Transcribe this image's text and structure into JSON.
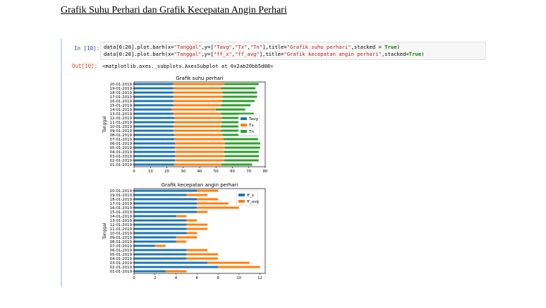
{
  "document": {
    "heading": "Grafik Suhu Perhari dan Grafik Kecepatan Angin Perhari"
  },
  "notebook": {
    "input_prompt": "In [10]:",
    "output_prompt": "Out[10]:",
    "code_line_1": {
      "prefix": "data[0:20].plot.barh(x=",
      "x": "\"Tanggal\"",
      "mid": ",y=[",
      "y1": "\"Tavg\"",
      "c1": ",",
      "y2": "\"Tx\"",
      "c2": ",",
      "y3": "\"Tn\"",
      "mid2": "],title=",
      "title": "\"Grafik suhu perhari\"",
      "mid3": ",stacked = ",
      "kw": "True",
      "end": ")"
    },
    "code_line_2": {
      "prefix": "data[0:20].plot.barh(x=",
      "x": "\"Tanggal\"",
      "mid": ",y=[",
      "y1": "\"ff_x\"",
      "c1": ",",
      "y2": "\"ff_avg\"",
      "mid2": "],title=",
      "title": "\"Grafik kecepatan angin perhari\"",
      "mid3": ",stacked=",
      "kw": "True",
      "end": ")"
    },
    "output_text": "<matplotlib.axes._subplots.AxesSubplot at 0x2ab20bb5d08>"
  },
  "colors": {
    "blue": "#1f77b4",
    "orange": "#ff7f0e",
    "green": "#2ca02c"
  },
  "chart_data": [
    {
      "type": "bar",
      "orientation": "horizontal",
      "stacked": true,
      "title": "Grafik suhu perhari",
      "ylabel": "Tanggal",
      "xlabel": "",
      "xlim": [
        0,
        80
      ],
      "xticks": [
        0,
        10,
        20,
        30,
        40,
        50,
        60,
        70,
        80
      ],
      "legend_position": "center-right",
      "categories": [
        "01-01-2019",
        "02-01-2019",
        "03-01-2019",
        "04-01-2019",
        "05-01-2019",
        "06-01-2019",
        "07-01-2019",
        "08-01-2019",
        "09-01-2019",
        "10-01-2019",
        "11-01-2019",
        "12-01-2019",
        "13-01-2019",
        "14-01-2019",
        "15-01-2019",
        "16-01-2019",
        "17-01-2019",
        "18-01-2019",
        "19-01-2019",
        "20-01-2019"
      ],
      "series": [
        {
          "name": "Tavg",
          "color": "#1f77b4",
          "values": [
            24.5,
            25.0,
            25.2,
            25.0,
            24.8,
            25.0,
            24.6,
            24.5,
            24.0,
            24.0,
            24.5,
            24.5,
            24.0,
            22.8,
            24.0,
            24.0,
            24.0,
            24.0,
            24.0,
            24.0
          ]
        },
        {
          "name": "Tx",
          "color": "#ff7f0e",
          "values": [
            29.0,
            30.0,
            30.0,
            30.0,
            30.5,
            30.5,
            30.0,
            29.5,
            29.0,
            29.0,
            29.0,
            29.0,
            29.0,
            27.0,
            29.0,
            29.5,
            30.0,
            30.0,
            29.0,
            31.0
          ]
        },
        {
          "name": "Tn",
          "color": "#2ca02c",
          "values": [
            18.5,
            21.0,
            21.0,
            21.0,
            21.5,
            21.5,
            21.0,
            21.0,
            21.0,
            21.0,
            20.0,
            20.0,
            20.0,
            18.0,
            18.0,
            20.0,
            21.0,
            21.0,
            21.0,
            21.0
          ]
        }
      ]
    },
    {
      "type": "bar",
      "orientation": "horizontal",
      "stacked": true,
      "title": "Grafik kecepatan angin perhari",
      "ylabel": "Tanggal",
      "xlabel": "",
      "xlim": [
        0,
        12.5
      ],
      "xticks": [
        0,
        2,
        4,
        6,
        8,
        10,
        12
      ],
      "legend_position": "upper-right",
      "categories": [
        "01-01-2019",
        "02-01-2019",
        "03-01-2019",
        "04-01-2019",
        "05-01-2019",
        "06-01-2019",
        "07-01-2019",
        "08-01-2019",
        "09-01-2019",
        "10-01-2019",
        "11-01-2019",
        "12-01-2019",
        "13-01-2019",
        "14-01-2019",
        "15-01-2019",
        "16-01-2019",
        "17-01-2019",
        "18-01-2019",
        "19-01-2019",
        "20-01-2019"
      ],
      "series": [
        {
          "name": "ff_x",
          "color": "#1f77b4",
          "values": [
            3,
            8,
            7,
            5,
            5,
            5,
            2,
            4,
            4,
            5,
            5,
            5,
            5,
            4,
            6,
            6,
            6,
            6,
            5,
            6
          ]
        },
        {
          "name": "ff_avg",
          "color": "#ff7f0e",
          "values": [
            2,
            4,
            4,
            3,
            3,
            2,
            1,
            1,
            2,
            1,
            2,
            2,
            1,
            1,
            1,
            4,
            3,
            2,
            2,
            2
          ]
        }
      ]
    }
  ]
}
